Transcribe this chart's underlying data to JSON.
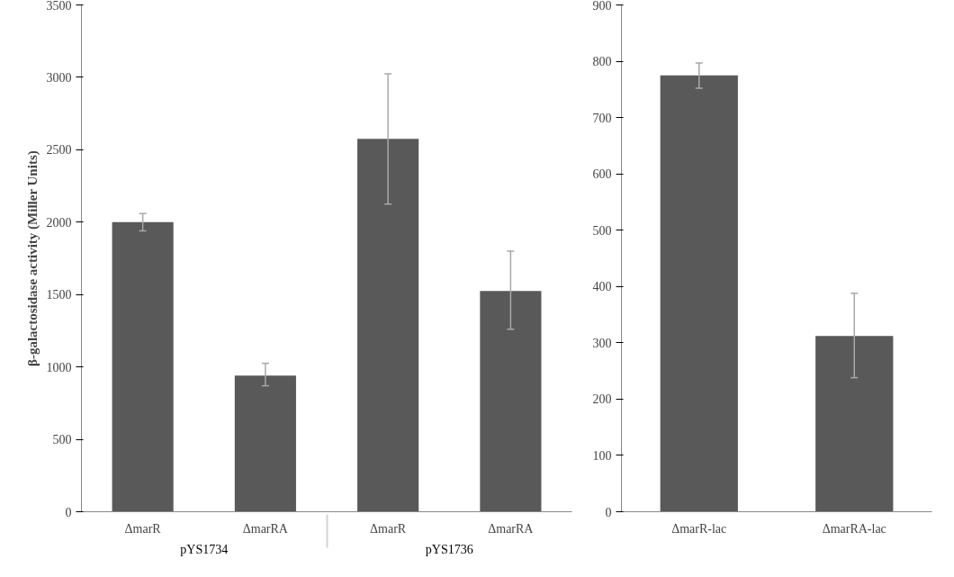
{
  "chart_data": [
    {
      "type": "bar",
      "ylabel": "β-galactosidase activity (Miller Units)",
      "categories": [
        "ΔmarR",
        "ΔmarRA",
        "ΔmarR",
        "ΔmarRA"
      ],
      "annotations": [
        "pYS1734",
        "pYS1736"
      ],
      "values": [
        2000,
        940,
        2575,
        1525
      ],
      "errors": [
        [
          1940,
          2060
        ],
        [
          870,
          1025
        ],
        [
          2125,
          3025
        ],
        [
          1260,
          1800
        ]
      ],
      "color": "#595959",
      "ylim": [
        0,
        3500
      ],
      "yticks": [
        0,
        500,
        1000,
        1500,
        2000,
        2500,
        3000,
        3500
      ],
      "grid": false
    },
    {
      "type": "bar",
      "categories": [
        "ΔmarR-lac",
        "ΔmarRA-lac"
      ],
      "values": [
        775,
        312
      ],
      "errors": [
        [
          752,
          797
        ],
        [
          238,
          388
        ]
      ],
      "color": "#595959",
      "ylim": [
        0,
        900
      ],
      "yticks": [
        0,
        100,
        200,
        300,
        400,
        500,
        600,
        700,
        800,
        900
      ],
      "grid": false
    }
  ]
}
